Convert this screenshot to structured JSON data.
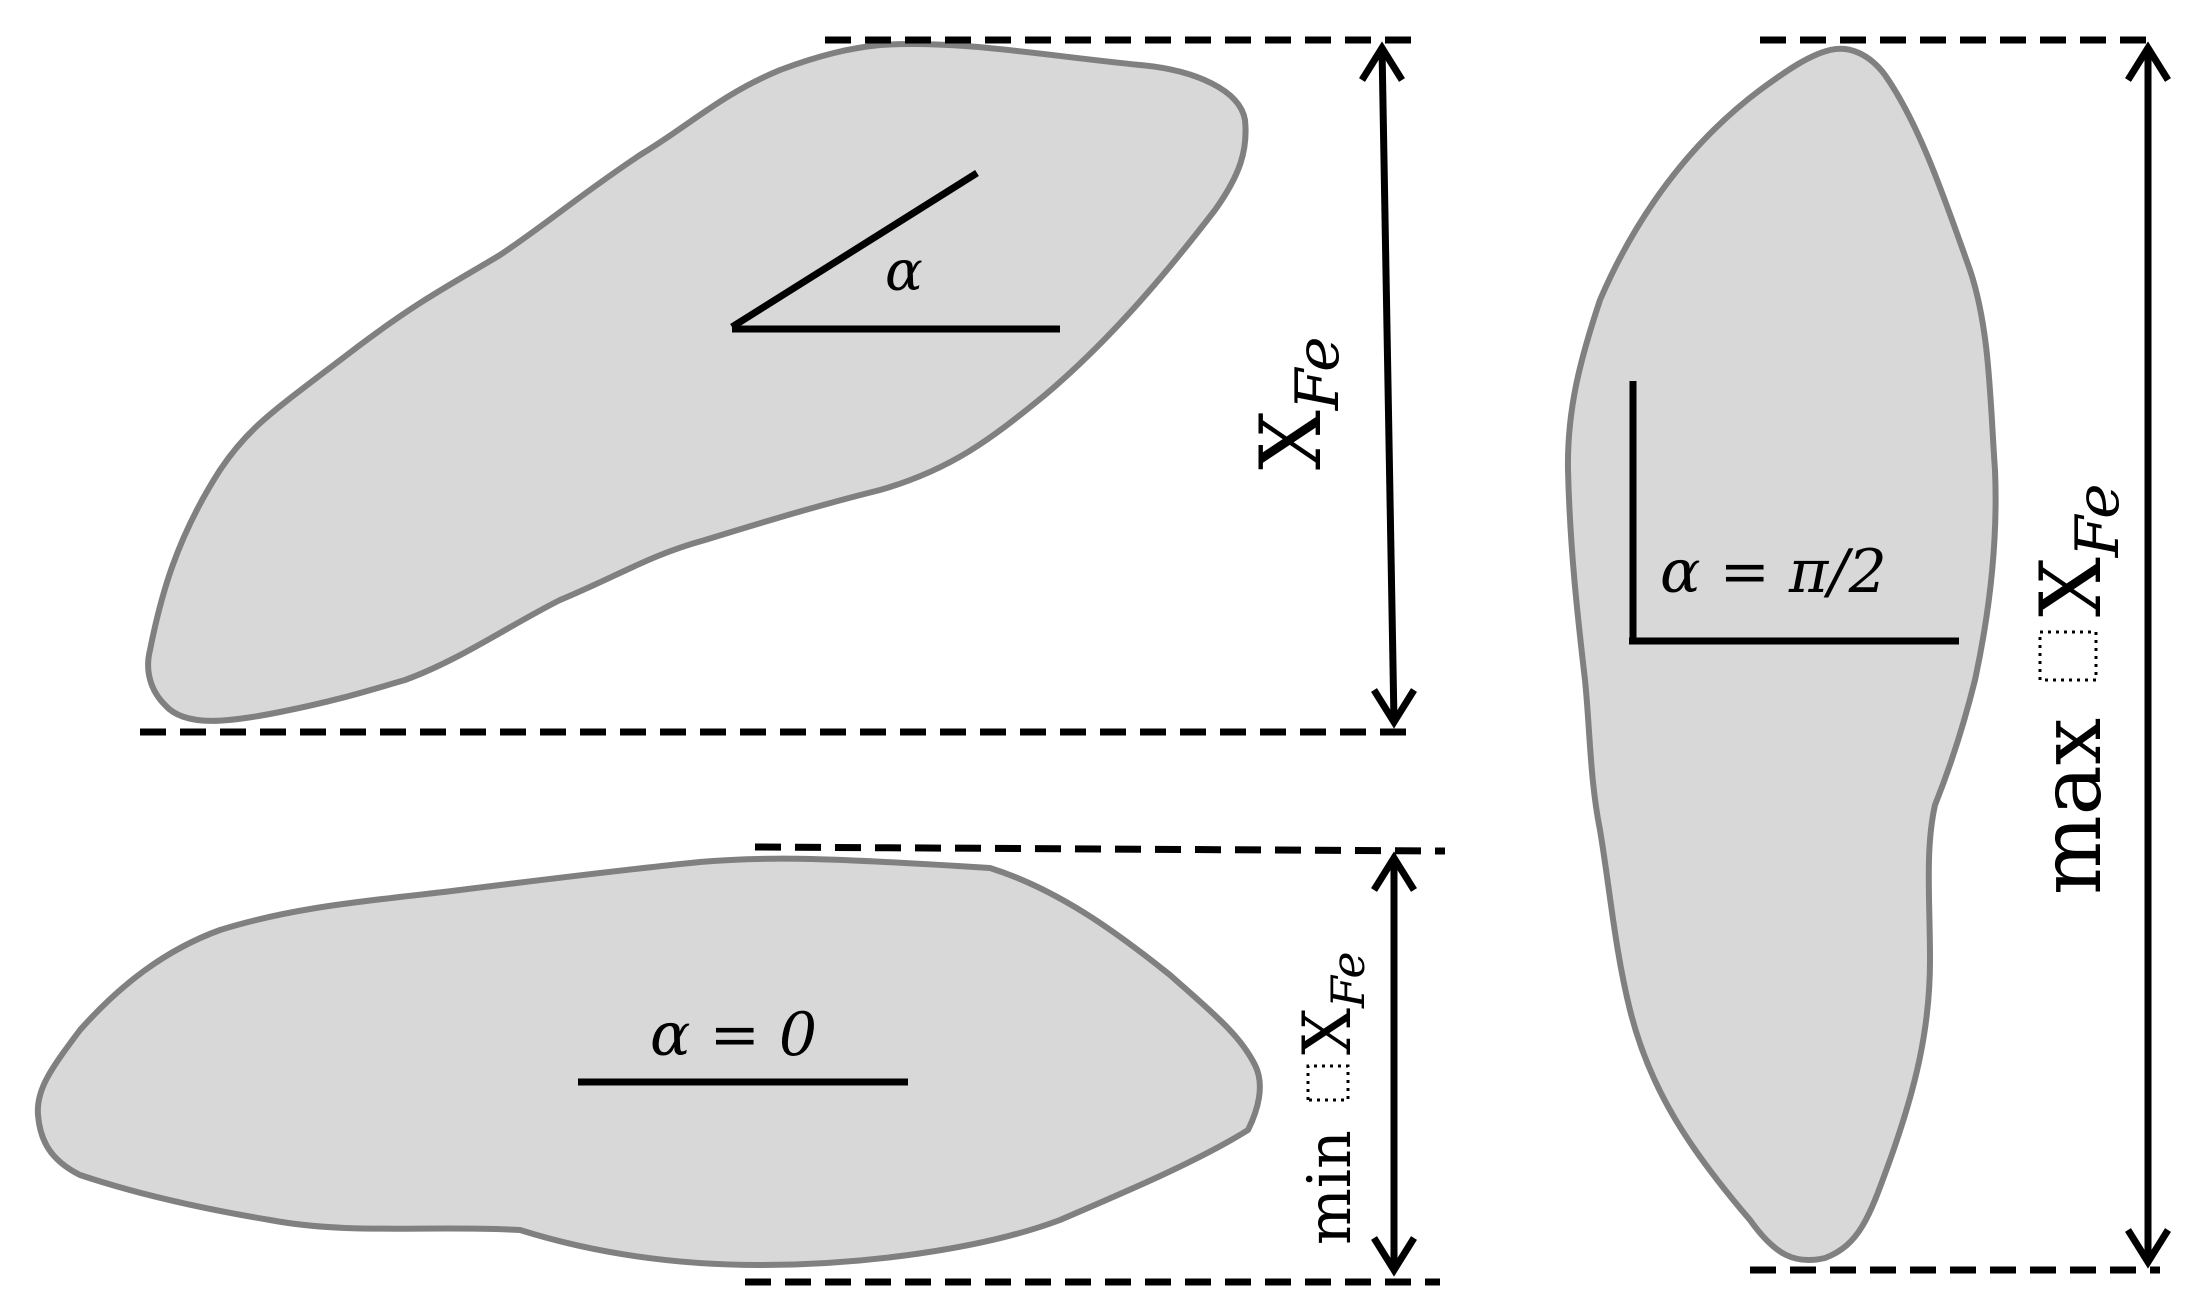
{
  "labels": {
    "alpha": "α",
    "alpha_zero": "α = 0",
    "alpha_pi_half": "α = π/2",
    "x": "X",
    "fe_subscript": "Fe",
    "min": "min",
    "max": "max"
  }
}
